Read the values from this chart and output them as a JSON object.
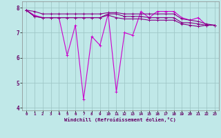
{
  "xlabel": "Windchill (Refroidissement éolien,°C)",
  "background_color": "#c0e8e8",
  "grid_color": "#a0c8c8",
  "line_color_volatile": "#cc00cc",
  "line_color_smooth": "#880088",
  "xlim": [
    -0.5,
    23.5
  ],
  "ylim": [
    3.9,
    8.25
  ],
  "yticks": [
    4,
    5,
    6,
    7,
    8
  ],
  "xtick_labels": [
    "0",
    "1",
    "2",
    "3",
    "4",
    "5",
    "6",
    "7",
    "8",
    "9",
    "10",
    "11",
    "12",
    "13",
    "14",
    "15",
    "16",
    "17",
    "18",
    "19",
    "20",
    "21",
    "22",
    "23"
  ],
  "series_volatile": [
    7.9,
    7.7,
    7.6,
    7.6,
    7.6,
    6.1,
    7.3,
    4.35,
    6.85,
    6.5,
    7.75,
    4.65,
    7.0,
    6.9,
    7.85,
    7.6,
    7.85,
    7.85,
    7.85,
    7.6,
    7.5,
    7.6,
    7.3,
    7.3
  ],
  "series_smooth1": [
    7.9,
    7.65,
    7.6,
    7.6,
    7.6,
    7.6,
    7.6,
    7.6,
    7.6,
    7.6,
    7.75,
    7.75,
    7.65,
    7.65,
    7.65,
    7.6,
    7.6,
    7.6,
    7.6,
    7.4,
    7.4,
    7.35,
    7.3,
    7.3
  ],
  "series_smooth2": [
    7.9,
    7.65,
    7.6,
    7.6,
    7.6,
    7.6,
    7.6,
    7.6,
    7.6,
    7.6,
    7.7,
    7.6,
    7.55,
    7.55,
    7.55,
    7.5,
    7.5,
    7.5,
    7.5,
    7.35,
    7.3,
    7.25,
    7.3,
    7.3
  ],
  "series_smooth3": [
    7.9,
    7.85,
    7.75,
    7.75,
    7.75,
    7.75,
    7.75,
    7.75,
    7.75,
    7.75,
    7.8,
    7.8,
    7.75,
    7.75,
    7.75,
    7.75,
    7.75,
    7.75,
    7.75,
    7.55,
    7.5,
    7.45,
    7.35,
    7.3
  ]
}
